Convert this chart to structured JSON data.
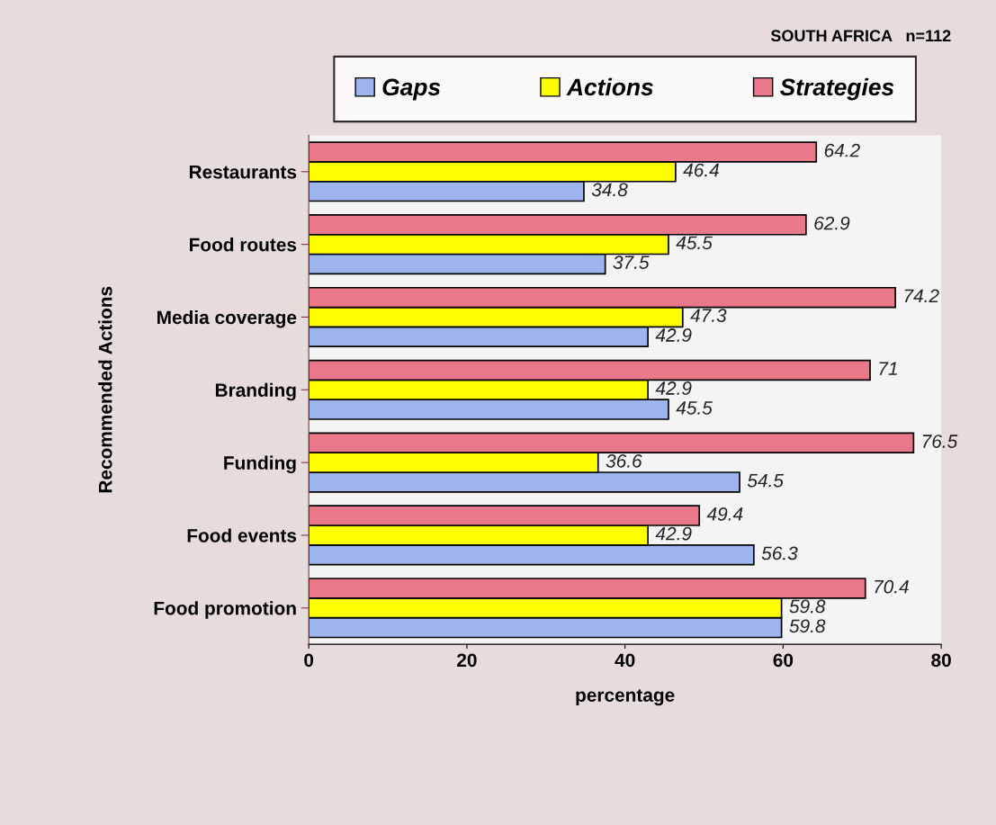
{
  "chart_data": {
    "type": "bar",
    "orientation": "horizontal",
    "title": "SOUTH AFRICA   n=112",
    "xlabel": "percentage",
    "ylabel": "Recommended Actions",
    "categories": [
      "Restaurants",
      "Food routes",
      "Media coverage",
      "Branding",
      "Funding",
      "Food events",
      "Food promotion"
    ],
    "series": [
      {
        "name": "Gaps",
        "color": "#9db4ec",
        "values": [
          34.8,
          37.5,
          42.9,
          45.5,
          54.5,
          56.3,
          59.8
        ]
      },
      {
        "name": "Actions",
        "color": "#ffff00",
        "values": [
          46.4,
          45.5,
          47.3,
          42.9,
          36.6,
          42.9,
          59.8
        ]
      },
      {
        "name": "Strategies",
        "color": "#e8788a",
        "values": [
          64.2,
          62.9,
          74.2,
          71,
          76.5,
          49.4,
          70.4
        ]
      }
    ],
    "xlim": [
      0,
      80
    ],
    "xticks": [
      0,
      20,
      40,
      60,
      80
    ],
    "data_labels": true,
    "legend": "top",
    "grid": false
  }
}
